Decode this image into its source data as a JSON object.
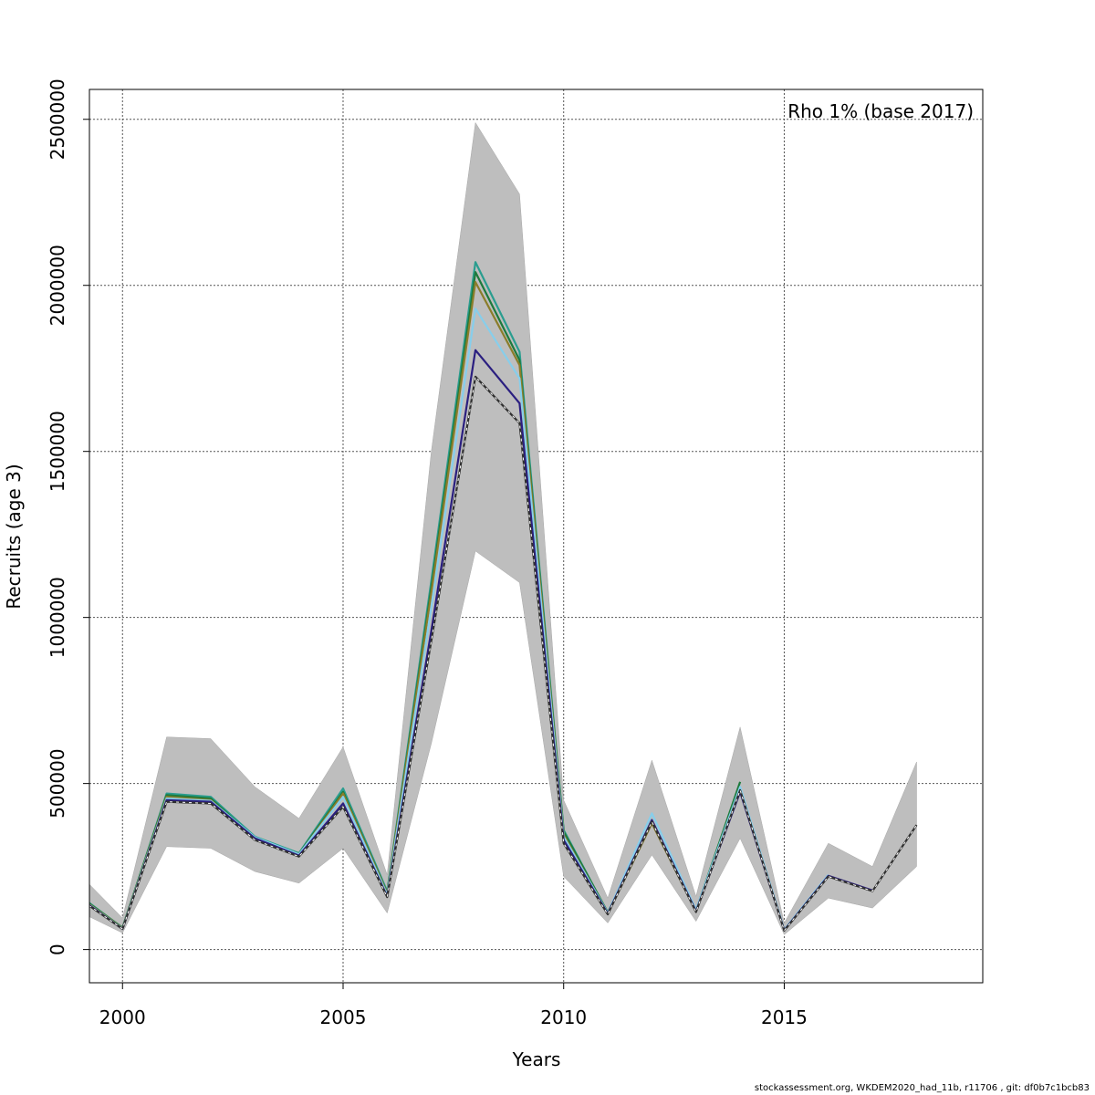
{
  "chart_data": {
    "type": "line",
    "title": "",
    "xlabel": "Years",
    "ylabel": "Recruits (age 3)",
    "xlim": [
      1999.25,
      2019.5
    ],
    "ylim": [
      -100000,
      2590000
    ],
    "x_ticks": [
      "2000",
      "2005",
      "2010",
      "2015"
    ],
    "x_tick_values": [
      2000,
      2005,
      2010,
      2015
    ],
    "y_ticks": [
      "0",
      "500000",
      "1000000",
      "1500000",
      "2000000",
      "2500000"
    ],
    "y_tick_values": [
      0,
      500000,
      1000000,
      1500000,
      2000000,
      2500000
    ],
    "grid": true,
    "legend": {
      "text": "Rho 1% (base 2017)",
      "position": "top-right"
    },
    "confidence_band": {
      "color": "#bebebe",
      "x": [
        1999,
        2000,
        2001,
        2002,
        2003,
        2004,
        2005,
        2006,
        2007,
        2008,
        2009,
        2010,
        2011,
        2012,
        2013,
        2014,
        2015,
        2016,
        2017,
        2018
      ],
      "lower": [
        115000,
        50000,
        310000,
        305000,
        235000,
        200000,
        305000,
        110000,
        620000,
        1200000,
        1105000,
        220000,
        80000,
        285000,
        85000,
        335000,
        45000,
        155000,
        125000,
        250000
      ],
      "upper": [
        230000,
        95000,
        640000,
        635000,
        490000,
        395000,
        610000,
        225000,
        1500000,
        2490000,
        2275000,
        450000,
        155000,
        570000,
        160000,
        670000,
        80000,
        320000,
        250000,
        565000
      ]
    },
    "series": [
      {
        "color": "#2a9d8f",
        "dashed": false,
        "x": [
          1999,
          2000,
          2001,
          2002,
          2003,
          2004,
          2005,
          2006,
          2007,
          2008,
          2009,
          2010,
          2011,
          2012
        ],
        "values": [
          165000,
          65000,
          470000,
          460000,
          340000,
          290000,
          485000,
          175000,
          1110000,
          2070000,
          1800000,
          360000,
          110000,
          390000
        ]
      },
      {
        "color": "#1e7a3c",
        "dashed": false,
        "x": [
          1999,
          2000,
          2001,
          2002,
          2003,
          2004,
          2005,
          2006,
          2007,
          2008,
          2009,
          2010,
          2011,
          2012,
          2013,
          2014
        ],
        "values": [
          162000,
          66000,
          465000,
          455000,
          335000,
          288000,
          475000,
          170000,
          1090000,
          2040000,
          1775000,
          355000,
          112000,
          385000,
          118000,
          505000
        ]
      },
      {
        "color": "#8b7d2a",
        "dashed": false,
        "x": [
          1999,
          2000,
          2001,
          2002,
          2003,
          2004,
          2005,
          2006,
          2007,
          2008,
          2009,
          2010,
          2011,
          2012,
          2013
        ],
        "values": [
          160000,
          64000,
          460000,
          450000,
          333000,
          285000,
          470000,
          168000,
          1075000,
          2010000,
          1760000,
          345000,
          108000,
          380000,
          115000
        ]
      },
      {
        "color": "#87ceeb",
        "dashed": false,
        "x": [
          1999,
          2000,
          2001,
          2002,
          2003,
          2004,
          2005,
          2006,
          2007,
          2008,
          2009,
          2010,
          2011,
          2012,
          2013,
          2014,
          2015,
          2016
        ],
        "values": [
          158000,
          63000,
          455000,
          448000,
          338000,
          287000,
          460000,
          165000,
          1030000,
          1930000,
          1720000,
          340000,
          110000,
          410000,
          120000,
          490000,
          60000,
          225000
        ]
      },
      {
        "color": "#2b1f80",
        "dashed": false,
        "x": [
          1999,
          2000,
          2001,
          2002,
          2003,
          2004,
          2005,
          2006,
          2007,
          2008,
          2009,
          2010,
          2011,
          2012,
          2013,
          2014,
          2015,
          2016,
          2017
        ],
        "values": [
          157000,
          62000,
          450000,
          445000,
          335000,
          283000,
          440000,
          160000,
          960000,
          1805000,
          1645000,
          330000,
          108000,
          390000,
          115000,
          475000,
          58000,
          222000,
          178000
        ]
      },
      {
        "color": "#303030",
        "dashed": true,
        "x": [
          1999,
          2000,
          2001,
          2002,
          2003,
          2004,
          2005,
          2006,
          2007,
          2008,
          2009,
          2010,
          2011,
          2012,
          2013,
          2014,
          2015,
          2016,
          2017,
          2018
        ],
        "values": [
          155000,
          62000,
          445000,
          440000,
          330000,
          280000,
          430000,
          158000,
          930000,
          1725000,
          1585000,
          320000,
          106000,
          385000,
          113000,
          480000,
          57000,
          220000,
          176000,
          375000
        ]
      }
    ]
  },
  "footer": "stockassessment.org, WKDEM2020_had_11b, r11706 , git: df0b7c1bcb83"
}
